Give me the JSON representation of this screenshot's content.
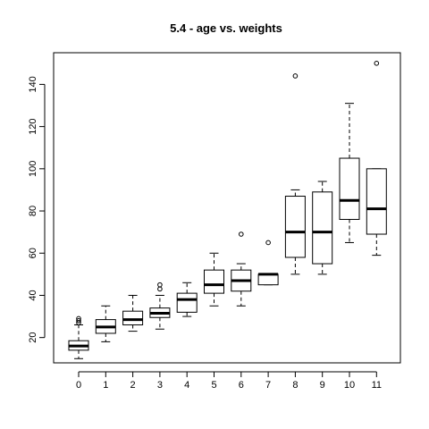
{
  "chart_data": {
    "type": "boxplot",
    "title": "5.4 - age vs. weights",
    "xlabel": "",
    "ylabel": "",
    "ylim": [
      8,
      155
    ],
    "y_ticks": [
      20,
      40,
      60,
      80,
      100,
      120,
      140
    ],
    "categories": [
      "0",
      "1",
      "2",
      "3",
      "4",
      "5",
      "6",
      "7",
      "8",
      "9",
      "10",
      "11"
    ],
    "boxes": [
      {
        "category": "0",
        "whisker_low": 10,
        "q1": 14,
        "median": 16,
        "q3": 18.5,
        "whisker_high": 26,
        "outliers": [
          27,
          28,
          29
        ]
      },
      {
        "category": "1",
        "whisker_low": 18,
        "q1": 22,
        "median": 25,
        "q3": 28.5,
        "whisker_high": 35,
        "outliers": []
      },
      {
        "category": "2",
        "whisker_low": 23,
        "q1": 26,
        "median": 28.5,
        "q3": 32.5,
        "whisker_high": 40,
        "outliers": []
      },
      {
        "category": "3",
        "whisker_low": 24,
        "q1": 29.5,
        "median": 31.5,
        "q3": 34,
        "whisker_high": 40,
        "outliers": [
          43,
          45
        ]
      },
      {
        "category": "4",
        "whisker_low": 30,
        "q1": 32,
        "median": 38,
        "q3": 41,
        "whisker_high": 46,
        "outliers": []
      },
      {
        "category": "5",
        "whisker_low": 35,
        "q1": 41,
        "median": 45,
        "q3": 52,
        "whisker_high": 60,
        "outliers": []
      },
      {
        "category": "6",
        "whisker_low": 35,
        "q1": 42,
        "median": 47,
        "q3": 52,
        "whisker_high": 55,
        "outliers": [
          69
        ]
      },
      {
        "category": "7",
        "whisker_low": 45,
        "q1": 45,
        "median": 50,
        "q3": 50,
        "whisker_high": 50,
        "outliers": [
          65
        ]
      },
      {
        "category": "8",
        "whisker_low": 50,
        "q1": 58,
        "median": 70,
        "q3": 87,
        "whisker_high": 90,
        "outliers": [
          144
        ]
      },
      {
        "category": "9",
        "whisker_low": 50,
        "q1": 55,
        "median": 70,
        "q3": 89,
        "whisker_high": 94,
        "outliers": []
      },
      {
        "category": "10",
        "whisker_low": 65,
        "q1": 76,
        "median": 85,
        "q3": 105,
        "whisker_high": 131,
        "outliers": []
      },
      {
        "category": "11",
        "whisker_low": 59,
        "q1": 69,
        "median": 81,
        "q3": 100,
        "whisker_high": 100,
        "outliers": [
          150
        ]
      }
    ],
    "grid": false,
    "legend": "none"
  }
}
